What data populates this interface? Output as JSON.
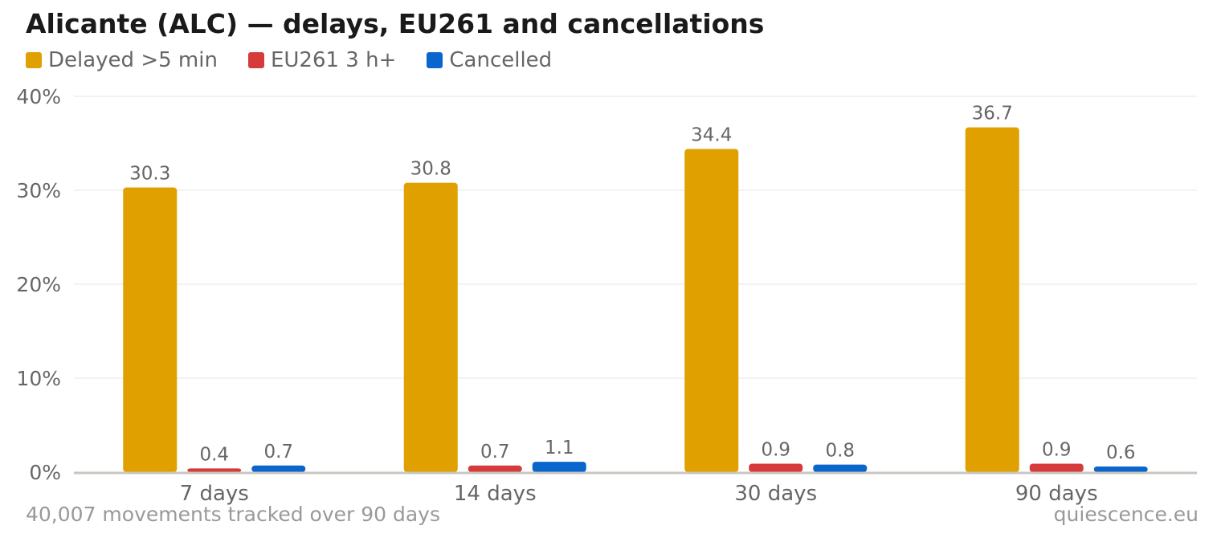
{
  "title": "Alicante (ALC) — delays, EU261 and cancellations",
  "footer_note": "40,007 movements tracked over 90 days",
  "source": "quiescence.eu",
  "chart_data": {
    "type": "bar",
    "title": "Alicante (ALC) — delays, EU261 and cancellations",
    "categories": [
      "7 days",
      "14 days",
      "30 days",
      "90 days"
    ],
    "series": [
      {
        "name": "Delayed >5 min",
        "color": "#E0A000",
        "values": [
          30.3,
          30.8,
          34.4,
          36.7
        ],
        "labels": [
          "30.3",
          "30.8",
          "34.4",
          "36.7"
        ]
      },
      {
        "name": "EU261 3 h+",
        "color": "#D63A3A",
        "values": [
          0.4,
          0.7,
          0.9,
          0.9
        ],
        "labels": [
          "0.4",
          "0.7",
          "0.9",
          "0.9"
        ]
      },
      {
        "name": "Cancelled",
        "color": "#0A66CC",
        "values": [
          0.7,
          1.1,
          0.8,
          0.6
        ],
        "labels": [
          "0.7",
          "1.1",
          "0.8",
          "0.6"
        ]
      }
    ],
    "ylim": [
      0,
      40
    ],
    "yticks": [
      0,
      10,
      20,
      30,
      40
    ],
    "ytick_labels": [
      "0%",
      "10%",
      "20%",
      "30%",
      "40%"
    ],
    "grid": true,
    "legend_position": "top-left"
  }
}
